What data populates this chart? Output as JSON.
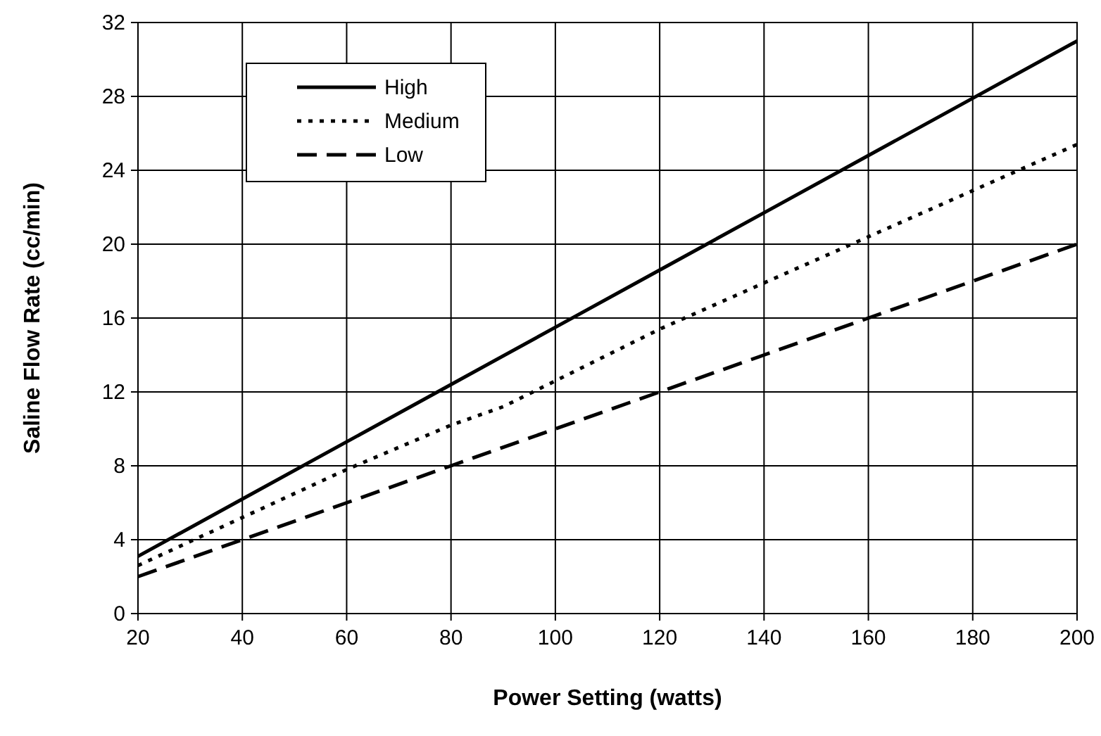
{
  "chart_data": {
    "type": "line",
    "xlabel": "Power Setting (watts)",
    "ylabel": "Saline Flow Rate (cc/min)",
    "xlim": [
      20,
      200
    ],
    "xticks": [
      20,
      40,
      60,
      80,
      100,
      120,
      140,
      160,
      180,
      200
    ],
    "ylim": [
      0,
      32
    ],
    "yticks": [
      0,
      4,
      8,
      12,
      16,
      20,
      24,
      28,
      32
    ],
    "grid": true,
    "legend": "top left",
    "marker": "none",
    "series": [
      {
        "name": "High",
        "color": "#000000",
        "line_style": "solid",
        "x": [
          20,
          40,
          60,
          80,
          100,
          120,
          140,
          160,
          180,
          200
        ],
        "values": [
          3.1,
          6.2,
          9.3,
          12.4,
          15.5,
          18.6,
          21.7,
          24.8,
          27.9,
          31
        ]
      },
      {
        "name": "Medium",
        "color": "#000000",
        "line_style": "dotted",
        "x": [
          20,
          40,
          60,
          80,
          90,
          100,
          120,
          140,
          160,
          180,
          200
        ],
        "values": [
          2.6,
          5.2,
          7.8,
          10.2,
          11.2,
          12.6,
          15.4,
          17.9,
          20.4,
          22.9,
          25.4
        ]
      },
      {
        "name": "Low",
        "color": "#000000",
        "line_style": "dashed",
        "x": [
          20,
          40,
          60,
          80,
          100,
          120,
          140,
          160,
          180,
          200
        ],
        "values": [
          2,
          4,
          6,
          8,
          10,
          12,
          14,
          16,
          18,
          20
        ]
      }
    ]
  }
}
